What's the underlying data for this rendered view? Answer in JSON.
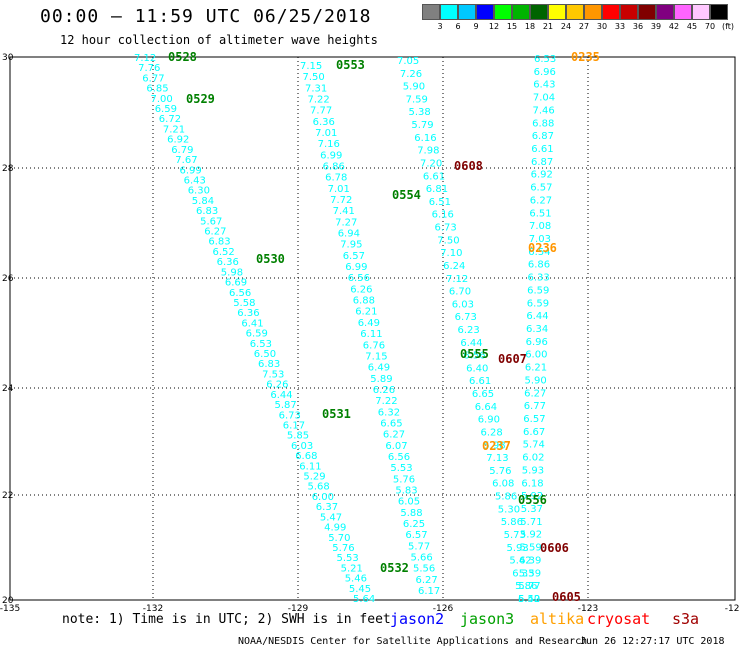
{
  "header": {
    "title": "00:00 – 11:59 UTC 06/25/2018",
    "subtitle": "12 hour collection of altimeter wave heights"
  },
  "legend": {
    "labels": [
      "3",
      "6",
      "9",
      "12",
      "15",
      "18",
      "21",
      "24",
      "27",
      "30",
      "33",
      "36",
      "39",
      "42",
      "45",
      "70",
      "(ft)"
    ],
    "colors": [
      "#808080",
      "#00ffff",
      "#00c8ff",
      "#0000ff",
      "#00ff00",
      "#00b400",
      "#006400",
      "#ffff00",
      "#ffc800",
      "#ff9600",
      "#ff0000",
      "#c80000",
      "#800000",
      "#800080",
      "#ff64ff",
      "#ffc8ff",
      "#000000"
    ]
  },
  "footer": {
    "note": "note: 1) Time is in UTC; 2) SWH is in feet",
    "satellites": [
      {
        "name": "jason2",
        "color": "#0000ff"
      },
      {
        "name": "jason3",
        "color": "#00a000"
      },
      {
        "name": "altika",
        "color": "#ffa000"
      },
      {
        "name": "cryosat",
        "color": "#ff0000"
      },
      {
        "name": "s3a",
        "color": "#a00000"
      }
    ],
    "credit": "NOAA/NESDIS Center for Satellite Applications and Research",
    "timestamp": "Jun 26 12:27:17 UTC 2018"
  },
  "map": {
    "lon_ticks": [
      "-135",
      "-132",
      "-129",
      "-126",
      "-123",
      "-120"
    ],
    "lat_ticks": [
      "30",
      "28",
      "26",
      "24",
      "22",
      "20"
    ],
    "track_color": "#00ffff",
    "pass_labels": [
      {
        "text": "0528",
        "color": "#008000"
      },
      {
        "text": "0529",
        "color": "#008000"
      },
      {
        "text": "0530",
        "color": "#008000"
      },
      {
        "text": "0531",
        "color": "#008000"
      },
      {
        "text": "0532",
        "color": "#008000"
      },
      {
        "text": "0553",
        "color": "#008000"
      },
      {
        "text": "0554",
        "color": "#008000"
      },
      {
        "text": "0555",
        "color": "#008000"
      },
      {
        "text": "0556",
        "color": "#008000"
      },
      {
        "text": "0235",
        "color": "#ff9600"
      },
      {
        "text": "0236",
        "color": "#ff9600"
      },
      {
        "text": "0237",
        "color": "#ff9600"
      },
      {
        "text": "0605",
        "color": "#800000"
      },
      {
        "text": "0606",
        "color": "#800000"
      },
      {
        "text": "0607",
        "color": "#800000"
      },
      {
        "text": "0608",
        "color": "#800000"
      }
    ],
    "tracks": [
      {
        "name": "track-jason3-0528",
        "values": [
          "7.12",
          "7.76",
          "6.77",
          "6.85",
          "7.00",
          "6.59",
          "6.72",
          "7.21",
          "6.92",
          "6.79",
          "7.67",
          "6.99",
          "6.43",
          "6.30",
          "5.84",
          "6.83",
          "5.67",
          "6.27",
          "6.83",
          "6.52",
          "6.36",
          "5.98",
          "6.69",
          "6.56",
          "5.58",
          "6.36",
          "6.41",
          "6.59",
          "6.53",
          "6.50",
          "6.83",
          "7.53",
          "6.26",
          "6.44",
          "5.87",
          "6.73",
          "6.17",
          "5.85",
          "6.03",
          "6.68",
          "6.11",
          "5.29",
          "5.68",
          "6.00",
          "6.37",
          "5.47",
          "4.99",
          "5.70",
          "5.76",
          "5.53",
          "5.21",
          "5.46",
          "5.45",
          "5.64"
        ]
      },
      {
        "name": "track-jason3-0553",
        "values": [
          "7.15",
          "7.50",
          "7.31",
          "7.22",
          "7.77",
          "6.36",
          "7.01",
          "7.16",
          "6.99",
          "6.86",
          "6.78",
          "7.01",
          "7.72",
          "7.41",
          "7.27",
          "6.94",
          "7.95",
          "6.57",
          "6.99",
          "6.56",
          "6.26",
          "6.88",
          "6.21",
          "6.49",
          "6.11",
          "6.76",
          "7.15",
          "6.49",
          "5.89",
          "6.26",
          "7.22",
          "6.32",
          "6.65",
          "6.27",
          "6.07",
          "6.56",
          "5.53",
          "5.76",
          "5.83",
          "6.05",
          "5.88",
          "6.25",
          "6.57",
          "5.77",
          "5.66",
          "5.56",
          "6.27",
          "6.17"
        ]
      },
      {
        "name": "track-saral-0235",
        "values": [
          "6.53",
          "6.96",
          "6.43",
          "7.04",
          "7.46",
          "6.88",
          "6.87",
          "6.61",
          "6.87",
          "6.92",
          "6.57",
          "6.27",
          "6.51",
          "7.08",
          "7.03",
          "6.54",
          "6.86",
          "6.33",
          "6.59",
          "6.59",
          "6.44",
          "6.34",
          "6.96",
          "6.00",
          "6.21",
          "5.90",
          "6.27",
          "6.77",
          "6.57",
          "6.67",
          "5.74",
          "6.02",
          "5.93",
          "6.18",
          "5.92",
          "5.37",
          "5.71",
          "5.92",
          "5.59",
          "6.39",
          "5.59",
          "5.77",
          "6.42"
        ]
      },
      {
        "name": "track-cryosat-0608",
        "values": [
          "7.05",
          "7.26",
          "5.90",
          "7.59",
          "5.38",
          "5.79",
          "6.16",
          "7.98",
          "7.20",
          "6.61",
          "6.81",
          "6.51",
          "6.16",
          "6.73",
          "7.50",
          "7.10",
          "6.24",
          "7.12",
          "6.70",
          "6.03",
          "6.73",
          "6.23",
          "6.44",
          "6.56",
          "6.40",
          "6.61",
          "6.65",
          "6.64",
          "6.90",
          "6.28",
          "5.98",
          "7.13",
          "5.76",
          "6.08",
          "5.86",
          "5.30",
          "5.86",
          "5.73",
          "5.93",
          "5.42",
          "6.33",
          "5.86",
          "5.50"
        ]
      }
    ]
  }
}
